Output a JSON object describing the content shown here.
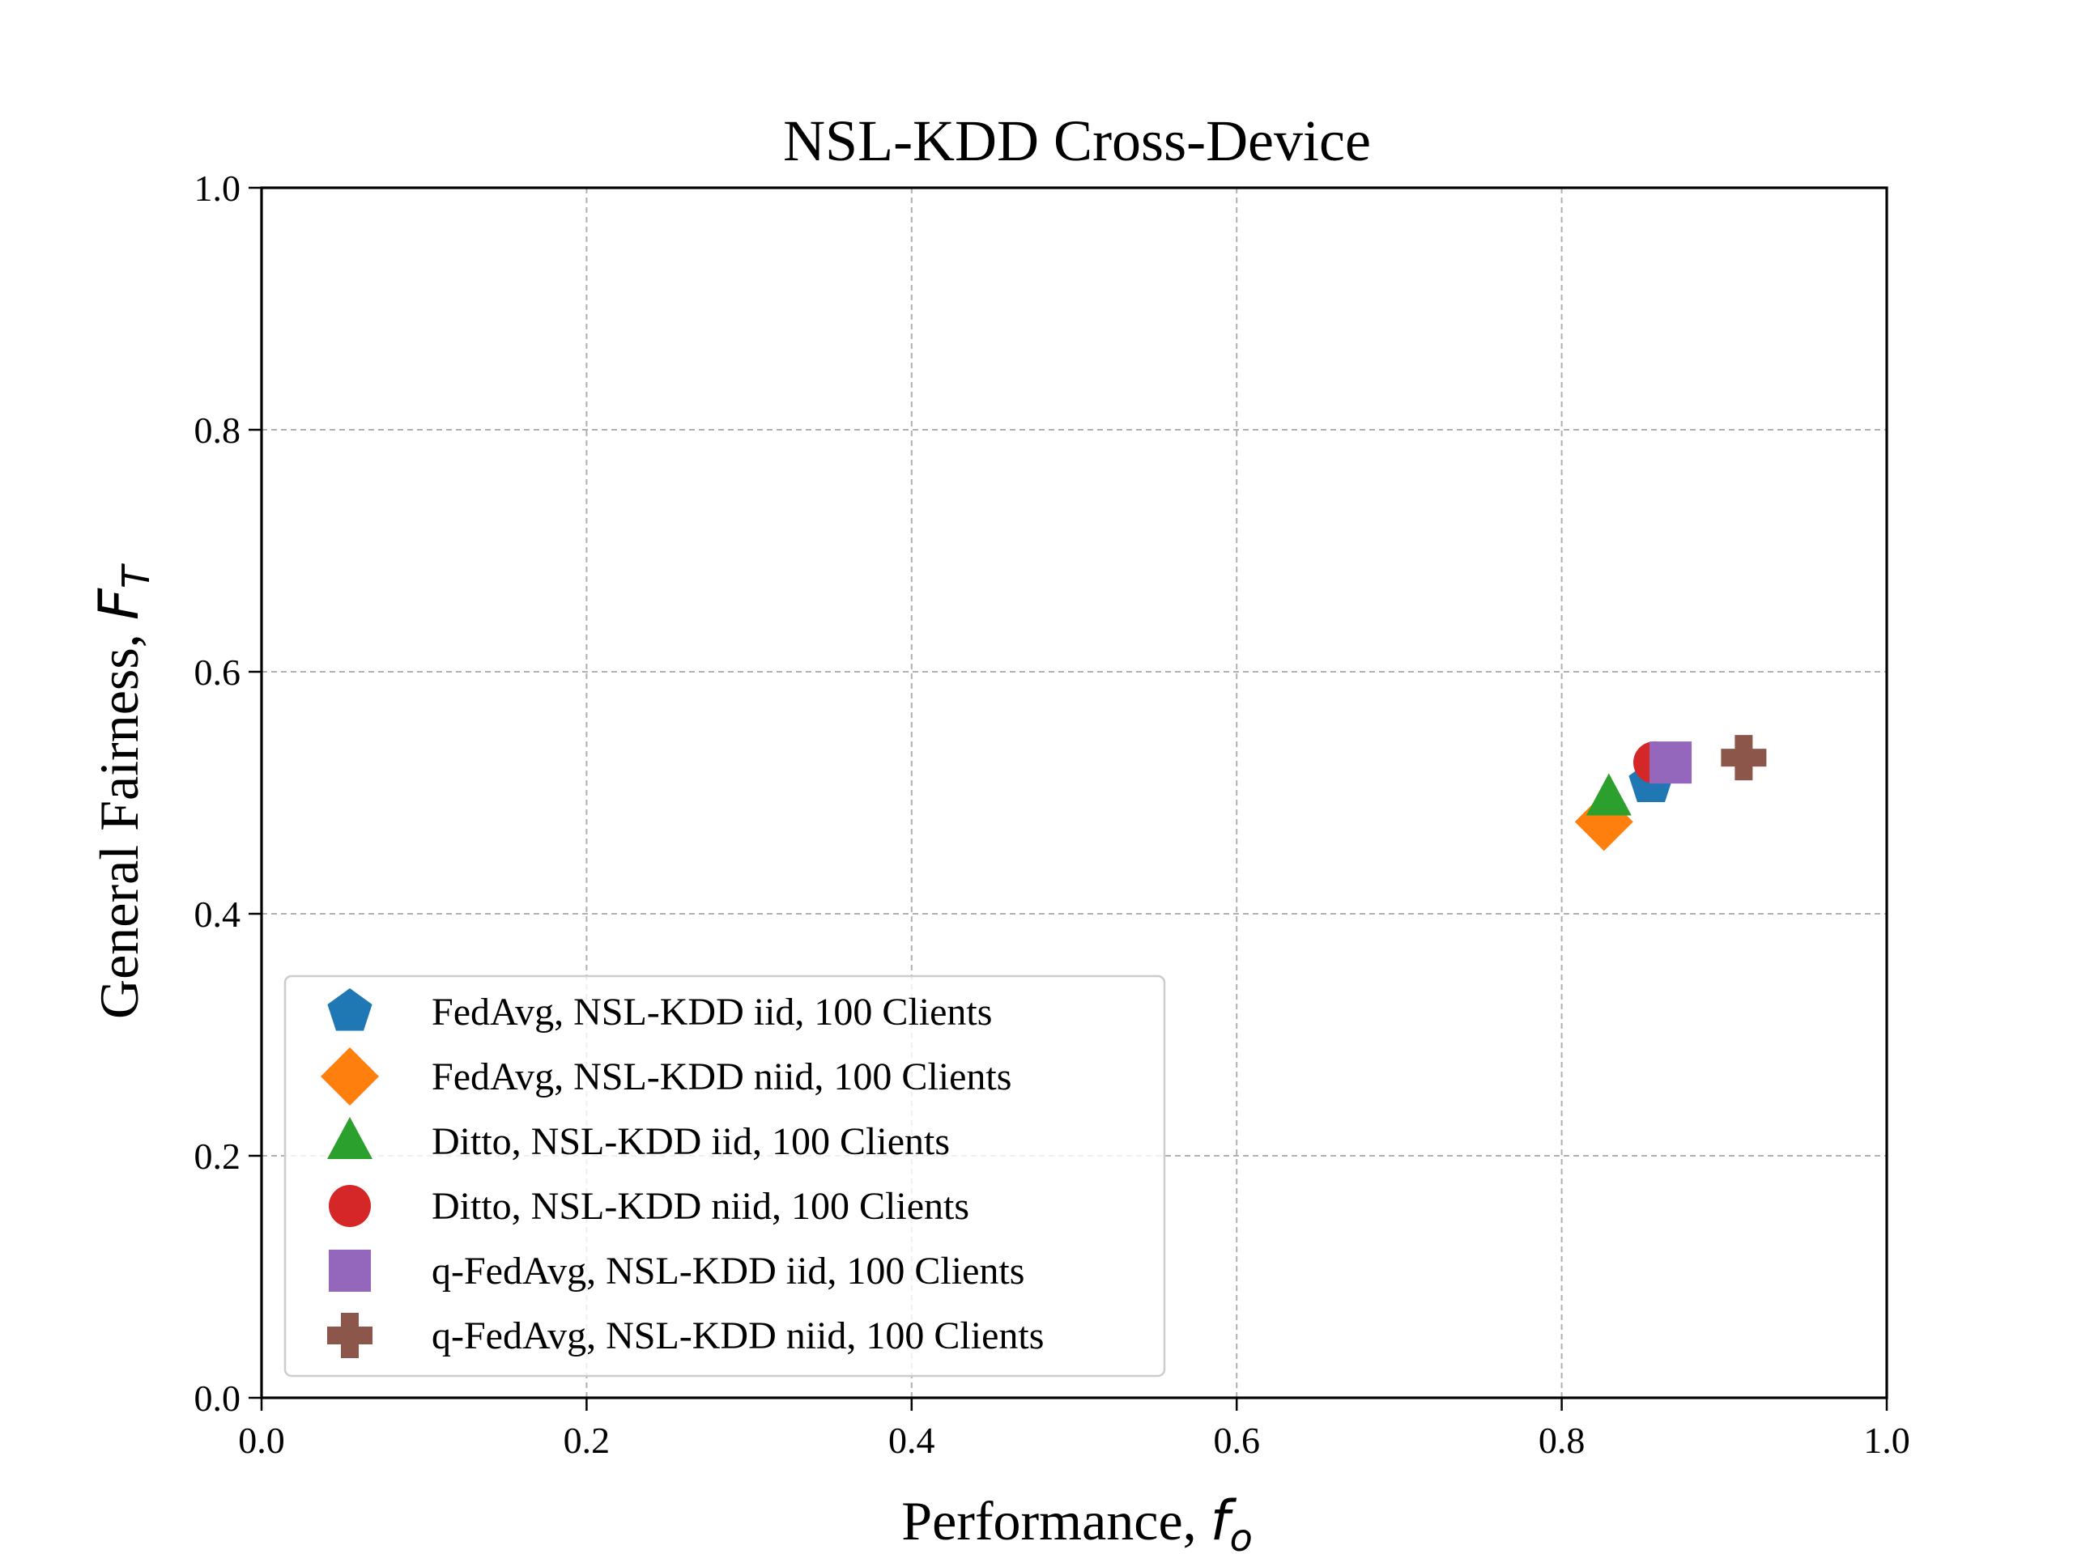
{
  "chart_data": {
    "type": "scatter",
    "title": "NSL-KDD Cross-Device",
    "xlabel": {
      "text": "Performance, ",
      "symbol": "f",
      "sub": "o"
    },
    "ylabel": {
      "text": "General Fairness, ",
      "symbol": "F",
      "sub": "T"
    },
    "xlim": [
      0.0,
      1.0
    ],
    "ylim": [
      0.0,
      1.0
    ],
    "xticks": [
      "0.0",
      "0.2",
      "0.4",
      "0.6",
      "0.8",
      "1.0"
    ],
    "yticks": [
      "0.0",
      "0.2",
      "0.4",
      "0.6",
      "0.8",
      "1.0"
    ],
    "grid": true,
    "legend_position": "lower-left",
    "series": [
      {
        "name": "FedAvg, NSL-KDD iid, 100 Clients",
        "marker": "pentagon",
        "color": "#1f77b4",
        "x": 0.855,
        "y": 0.508
      },
      {
        "name": "FedAvg, NSL-KDD niid, 100 Clients",
        "marker": "diamond",
        "color": "#ff7f0e",
        "x": 0.826,
        "y": 0.476
      },
      {
        "name": "Ditto, NSL-KDD iid, 100 Clients",
        "marker": "triangle",
        "color": "#2ca02c",
        "x": 0.829,
        "y": 0.496
      },
      {
        "name": "Ditto, NSL-KDD niid, 100 Clients",
        "marker": "circle",
        "color": "#d62728",
        "x": 0.857,
        "y": 0.525
      },
      {
        "name": "q-FedAvg, NSL-KDD iid, 100 Clients",
        "marker": "square",
        "color": "#9467bd",
        "x": 0.867,
        "y": 0.525
      },
      {
        "name": "q-FedAvg, NSL-KDD niid, 100 Clients",
        "marker": "plus",
        "color": "#8c564b",
        "x": 0.912,
        "y": 0.529
      }
    ]
  }
}
